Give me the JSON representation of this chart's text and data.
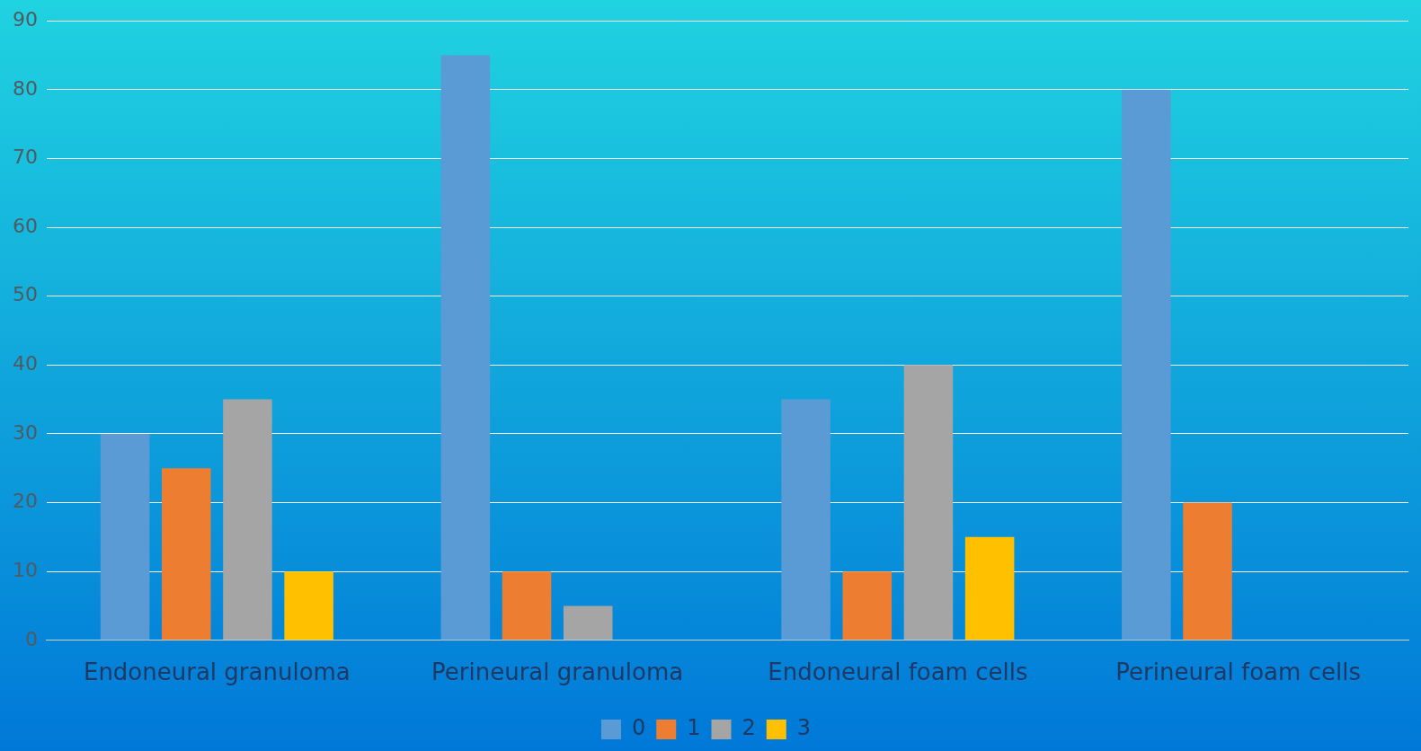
{
  "chart_data": {
    "type": "bar",
    "categories": [
      "Endoneural granuloma",
      "Perineural granuloma",
      "Endoneural foam cells",
      "Perineural foam cells"
    ],
    "series": [
      {
        "name": "0",
        "color": "#5b9bd5",
        "values": [
          30,
          85,
          35,
          80
        ]
      },
      {
        "name": "1",
        "color": "#ed7d31",
        "values": [
          25,
          10,
          10,
          20
        ]
      },
      {
        "name": "2",
        "color": "#a5a5a5",
        "values": [
          35,
          5,
          40,
          0
        ]
      },
      {
        "name": "3",
        "color": "#ffc000",
        "values": [
          10,
          0,
          15,
          0
        ]
      }
    ],
    "ylim": [
      0,
      90
    ],
    "yticks": [
      0,
      10,
      20,
      30,
      40,
      50,
      60,
      70,
      80,
      90
    ],
    "grid": "y",
    "legend": "bottom"
  }
}
